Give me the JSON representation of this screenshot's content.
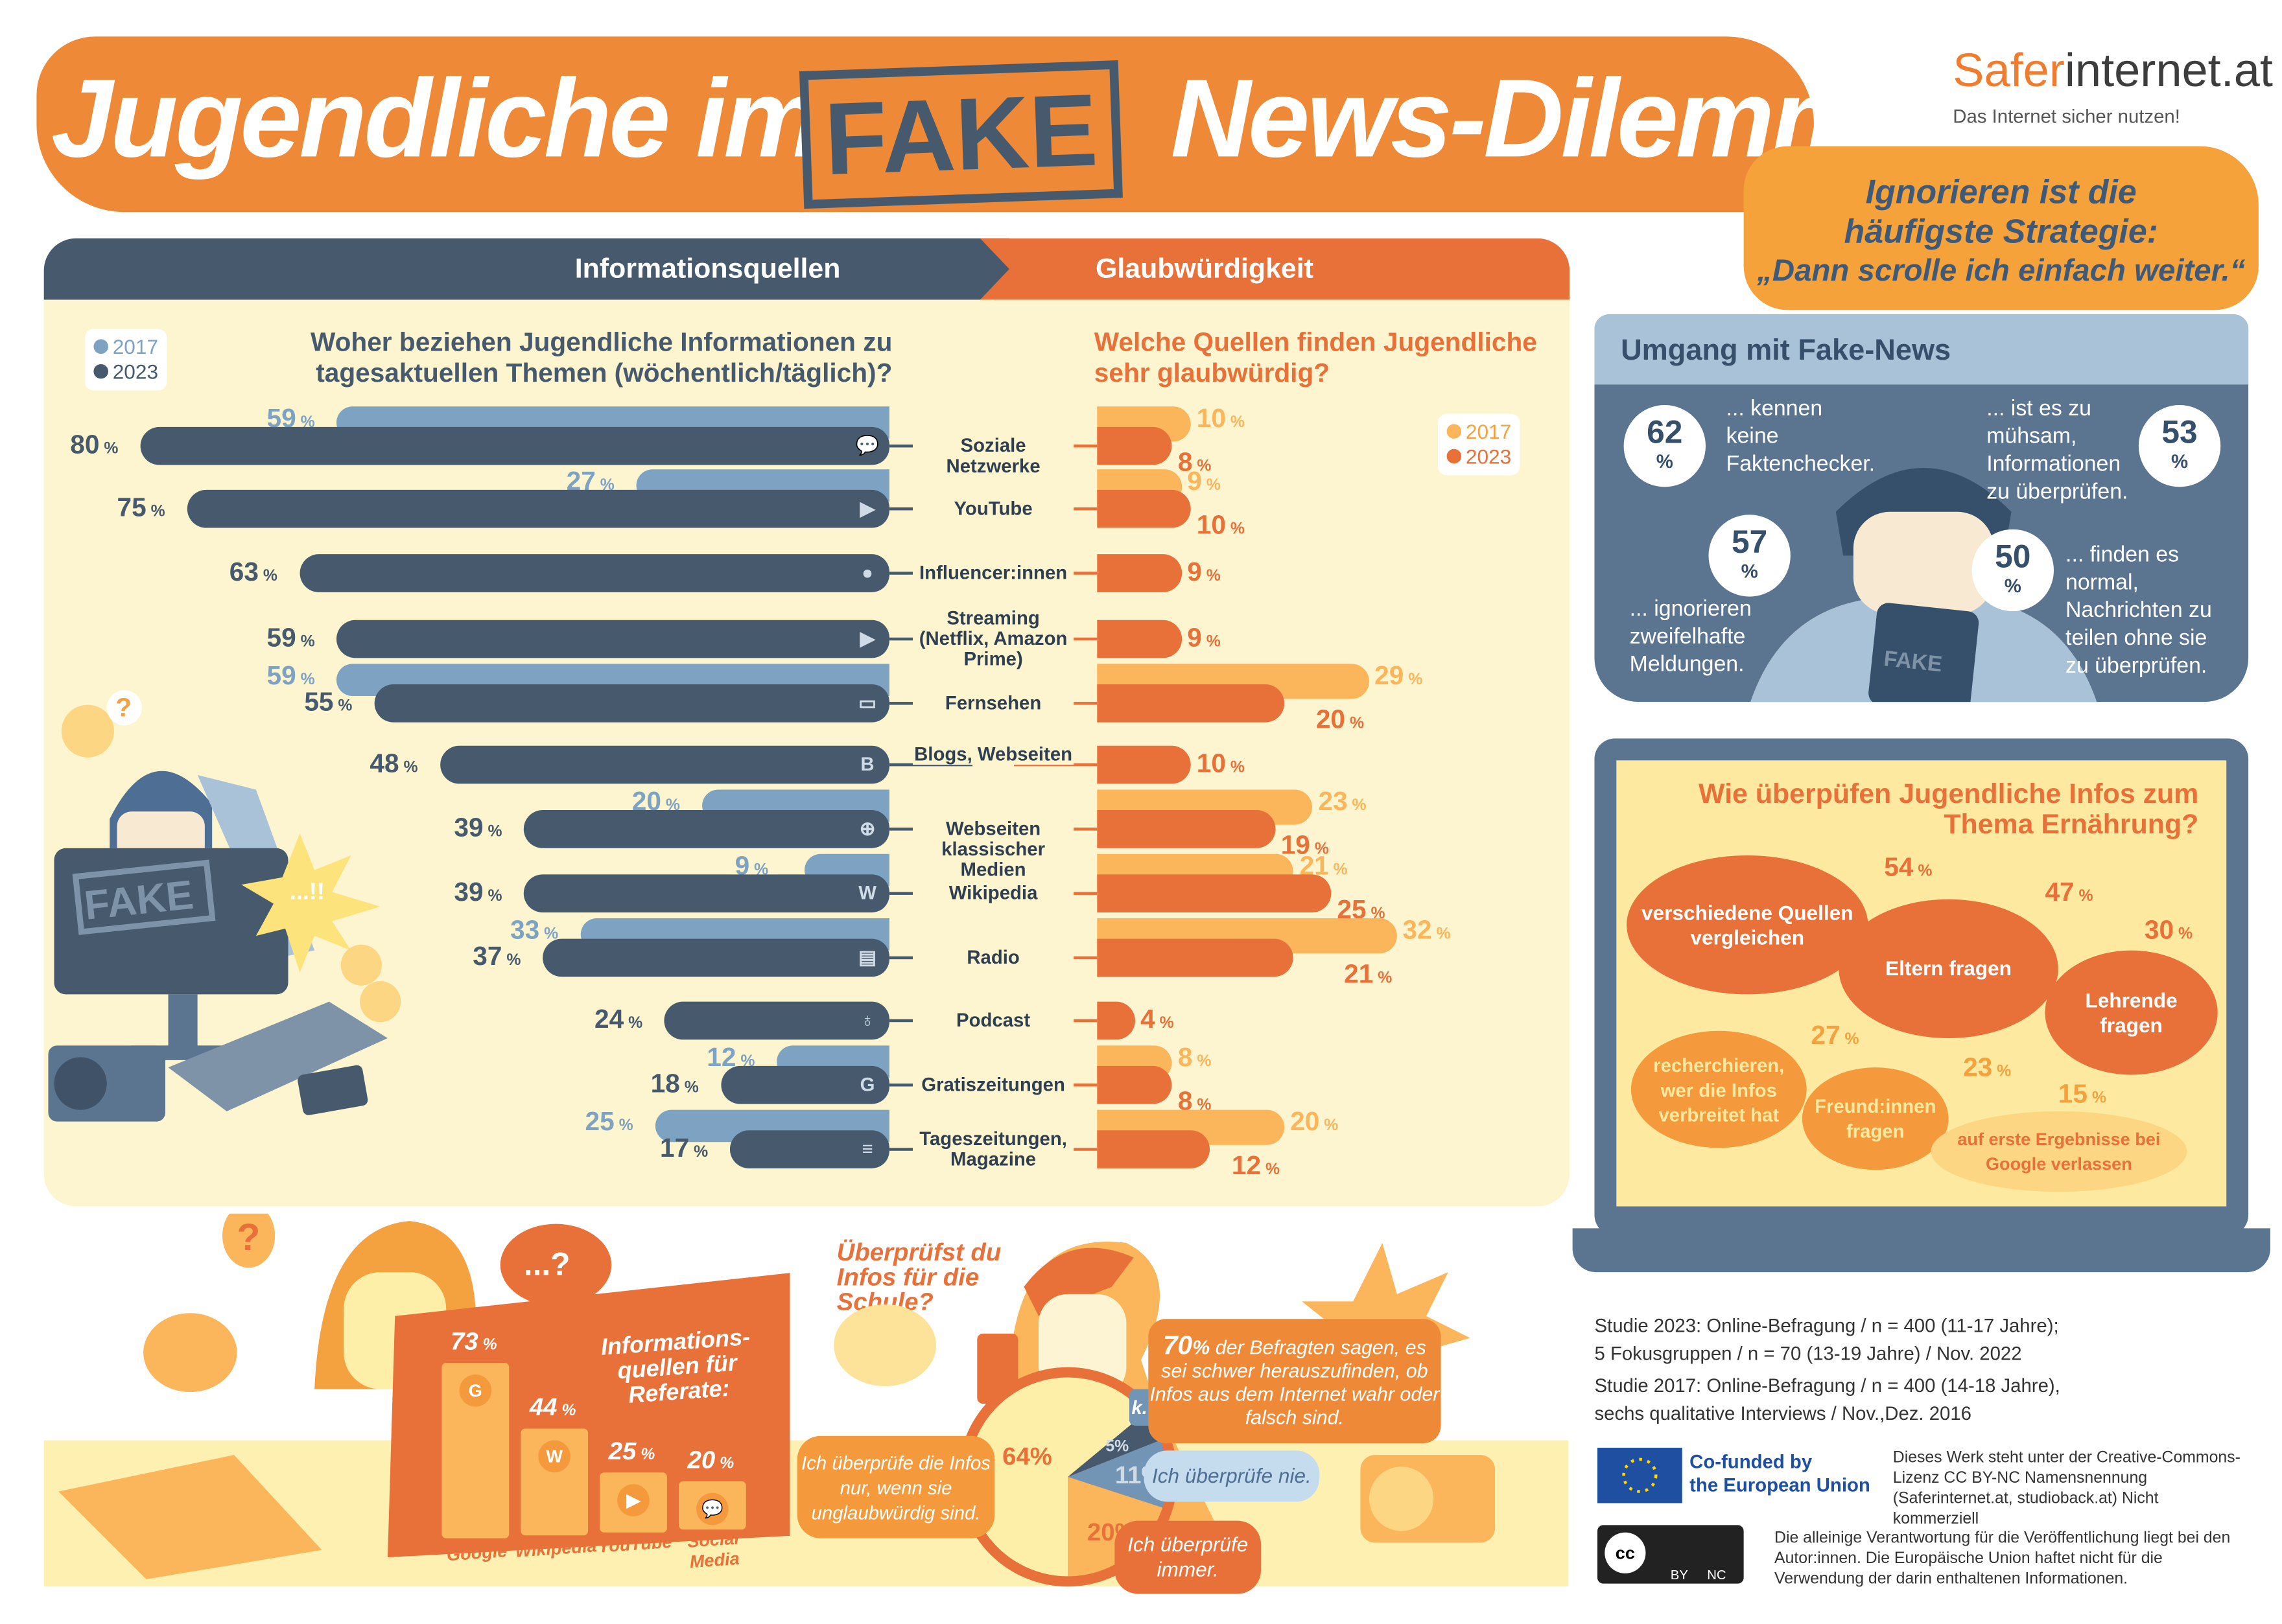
{
  "header": {
    "title_part1": "Jugendliche im",
    "title_stamp": "FAKE",
    "title_part2": "News-Dilemma",
    "logo_orange": "Safer",
    "logo_dark": "internet.at",
    "slogan": "Das Internet sicher nutzen!",
    "callout": [
      "Ignorieren ist die",
      "häufigste Strategie:",
      "„Dann scrolle ich einfach weiter.“"
    ]
  },
  "sections": {
    "left": "Informationsquellen",
    "right": "Glaubwürdigkeit"
  },
  "colors": {
    "y2017_sources": "#7ea2c2",
    "y2023_sources": "#475a6d",
    "y2017_cred": "#fbb55a",
    "y2023_cred": "#e8713a",
    "panel": "#fdf5d0",
    "orange": "#ee8a37"
  },
  "chart_data": [
    {
      "type": "bar",
      "orientation": "horizontal",
      "title": "Woher beziehen Jugendliche Informationen zu tagesaktuellen Themen (wöchentlich/täglich)?",
      "legend": [
        "2017",
        "2023"
      ],
      "legend_placement": "top-left",
      "unit": "%",
      "categories": [
        "Soziale Netzwerke",
        "YouTube",
        "Influencer:innen",
        "Streaming (Netflix, Amazon Prime)",
        "Fernsehen",
        "Blogs, Webseiten",
        "Webseiten klassischer Medien",
        "Wikipedia",
        "Radio",
        "Podcast",
        "Gratiszeitungen",
        "Tageszeitungen, Magazine"
      ],
      "icons": [
        "chat-bubbles-icon",
        "play-icon",
        "person-icon",
        "play-circle-icon",
        "tv-icon",
        "blogger-icon",
        "globe-icon",
        "wikipedia-icon",
        "radio-icon",
        "microphone-icon",
        "newspaper-icon",
        "magazine-icon"
      ],
      "series": [
        {
          "name": "2017",
          "values": [
            59,
            27,
            null,
            null,
            59,
            null,
            20,
            9,
            33,
            null,
            12,
            25
          ]
        },
        {
          "name": "2023",
          "values": [
            80,
            75,
            63,
            59,
            55,
            48,
            39,
            39,
            37,
            24,
            18,
            17
          ]
        }
      ]
    },
    {
      "type": "bar",
      "orientation": "horizontal",
      "title": "Welche Quellen finden Jugendliche sehr glaubwürdig?",
      "legend": [
        "2017",
        "2023"
      ],
      "legend_placement": "top-right",
      "unit": "%",
      "categories": [
        "Soziale Netzwerke",
        "YouTube",
        "Influencer:innen",
        "Streaming (Netflix, Amazon Prime)",
        "Fernsehen",
        "Blogs, Webseiten",
        "Webseiten klassischer Medien",
        "Wikipedia",
        "Radio",
        "Podcast",
        "Gratiszeitungen",
        "Tageszeitungen, Magazine"
      ],
      "series": [
        {
          "name": "2017",
          "values": [
            10,
            9,
            null,
            null,
            29,
            null,
            23,
            21,
            32,
            null,
            8,
            20
          ]
        },
        {
          "name": "2023",
          "values": [
            8,
            10,
            9,
            9,
            20,
            10,
            19,
            25,
            21,
            4,
            8,
            12
          ]
        }
      ]
    },
    {
      "type": "bar",
      "title": "Informations-quellen für Referate:",
      "unit": "%",
      "categories": [
        "Google",
        "Wikipedia",
        "YouTube",
        "Social Media"
      ],
      "values": [
        73,
        44,
        25,
        20
      ]
    },
    {
      "type": "pie",
      "title": "Überprüfst du Infos für die Schule?",
      "unit": "%",
      "slices": [
        {
          "label": "Ich überprüfe die Infos nur, wenn sie unglaubwürdig sind.",
          "value": 64,
          "color": "#fdeea8"
        },
        {
          "label": "k. A.",
          "value": 5,
          "color": "#475a6d"
        },
        {
          "label": "Ich überprüfe nie.",
          "value": 11,
          "color": "#7395b5"
        },
        {
          "label": "Ich überprüfe immer.",
          "value": 20,
          "color": "#fbb55a"
        }
      ]
    },
    {
      "type": "bubble",
      "title": "Wie überpüfen Jugendliche Infos zum Thema Ernährung?",
      "unit": "%",
      "items": [
        {
          "label": "verschiedene Quellen vergleichen",
          "value": 54
        },
        {
          "label": "Eltern fragen",
          "value": 47
        },
        {
          "label": "Lehrende fragen",
          "value": 30
        },
        {
          "label": "recherchieren, wer die Infos verbreitet hat",
          "value": 27
        },
        {
          "label": "Freund:innen fragen",
          "value": 23
        },
        {
          "label": "auf erste Ergebnisse bei Google verlassen",
          "value": 15
        }
      ]
    }
  ],
  "umgang": {
    "title": "Umgang mit Fake-News",
    "pct_sign": "%",
    "stats": [
      {
        "value": "62",
        "text": "... kennen keine Faktenchecker."
      },
      {
        "value": "53",
        "text": "... ist es zu mühsam, Informationen zu überprüfen."
      },
      {
        "value": "57",
        "text": "... ignorieren zweifelhafte Meldungen."
      },
      {
        "value": "50",
        "text": "... finden es normal, Nachrichten zu teilen ohne sie zu überprüfen."
      }
    ],
    "tablet_label": "FAKE"
  },
  "illustration": {
    "monitor_label": "FAKE",
    "bang": "...!!",
    "dots": "...?"
  },
  "school": {
    "seventy_value": "70",
    "seventy_text": "der Befragten sagen, es sei schwer herauszufinden, ob Infos aus dem Internet wahr oder falsch sind."
  },
  "footer": {
    "study2023": [
      "Studie 2023: Online-Befragung / n = 400 (11-17 Jahre);",
      "5 Fokusgruppen / n = 70 (13-19 Jahre) / Nov. 2022"
    ],
    "study2017": [
      "Studie 2017: Online-Befragung / n = 400 (14-18 Jahre),",
      "sechs qualitative Interviews / Nov.,Dez. 2016"
    ],
    "eu": [
      "Co-funded by",
      "the European Union"
    ],
    "license": "Dieses Werk steht unter der Creative-Commons-Lizenz CC BY-NC Namensnennung (Saferinternet.at, studioback.at) Nicht kommerziell",
    "cc_badges": [
      "BY",
      "NC"
    ],
    "disclaimer": "Die alleinige Verantwortung für die Veröffentlichung liegt bei den Autor:innen. Die Europäische Union haftet nicht für die Verwendung der darin enthaltenen Informationen."
  }
}
